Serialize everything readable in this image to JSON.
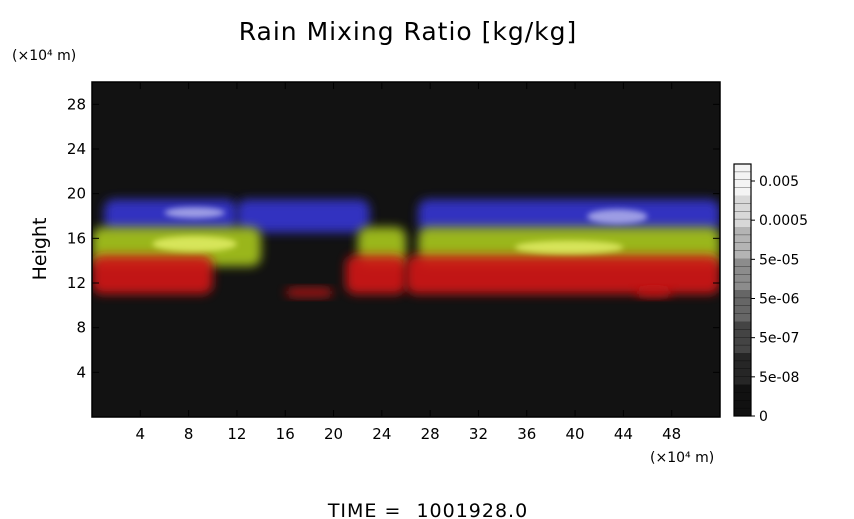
{
  "chart_data": {
    "type": "heatmap",
    "title": "Rain Mixing Ratio [kg/kg]",
    "ylabel": "Height",
    "yunit": "(×10⁴ m)",
    "xunit": "(×10⁴ m)",
    "xlim": [
      0,
      52
    ],
    "ylim": [
      0,
      30
    ],
    "x_ticks": [
      4,
      8,
      12,
      16,
      20,
      24,
      28,
      32,
      36,
      40,
      44,
      48
    ],
    "y_ticks": [
      4,
      8,
      12,
      16,
      20,
      24,
      28
    ],
    "grid": false,
    "colorbar": {
      "placement": "right",
      "labels": [
        "0.005",
        "0.0005",
        "5e-05",
        "5e-06",
        "5e-07",
        "5e-08",
        "0"
      ],
      "colors": [
        "#f4f4f4",
        "#d8d8d8",
        "#b4b4b4",
        "#8c8c8c",
        "#666666",
        "#444444",
        "#262626",
        "#111111"
      ]
    },
    "colors": {
      "background": "#121212",
      "high_layer": "#3535cf",
      "high_layer_peak": "#b8b8ee",
      "middle_layer": "#a6c41b",
      "middle_layer_peak": "#e6f26a",
      "low_layer": "#d01818"
    },
    "layers": [
      {
        "color": "high_layer",
        "y_bottom": 16.5,
        "y_top": 19.5,
        "segments": [
          [
            1,
            12
          ],
          [
            12,
            23
          ],
          [
            27,
            52
          ]
        ]
      },
      {
        "color": "middle_layer",
        "y_bottom": 13.5,
        "y_top": 17.0,
        "segments": [
          [
            0,
            14
          ],
          [
            22,
            26
          ],
          [
            27,
            52
          ]
        ]
      },
      {
        "color": "low_layer",
        "y_bottom": 11.0,
        "y_top": 14.5,
        "segments": [
          [
            0,
            10
          ],
          [
            21,
            26
          ],
          [
            26,
            52
          ]
        ]
      },
      {
        "color": "low_layer",
        "y_bottom": 10.8,
        "y_top": 11.5,
        "segments": [
          [
            16,
            20
          ],
          [
            45,
            48
          ]
        ]
      }
    ],
    "footer": {
      "label": "TIME =",
      "value": "1001928.0"
    }
  }
}
